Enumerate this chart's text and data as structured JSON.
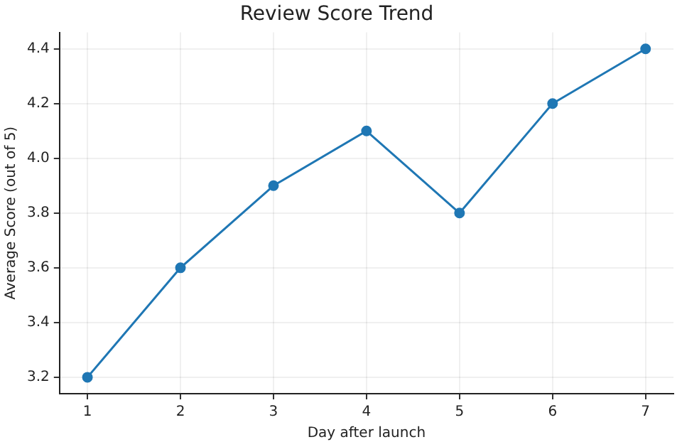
{
  "chart_data": {
    "type": "line",
    "title": "Review Score Trend",
    "xlabel": "Day after launch",
    "ylabel": "Average Score (out of 5)",
    "x": [
      1,
      2,
      3,
      4,
      5,
      6,
      7
    ],
    "series": [
      {
        "color": "#1f77b4",
        "values": [
          3.2,
          3.6,
          3.9,
          4.1,
          3.8,
          4.2,
          4.4
        ]
      }
    ],
    "xlim": [
      0.7,
      7.3
    ],
    "xticks": [
      1,
      2,
      3,
      4,
      5,
      6,
      7
    ],
    "ylim": [
      3.14,
      4.46
    ],
    "yticks": [
      3.2,
      3.4,
      3.6,
      3.8,
      {
        "value": 4,
        "label": "4.0"
      },
      4.2,
      4.4
    ],
    "grid": true,
    "marker": "circle",
    "line_style": "solid"
  }
}
